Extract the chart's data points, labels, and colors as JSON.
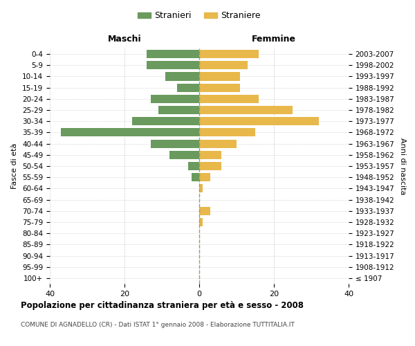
{
  "age_groups": [
    "100+",
    "95-99",
    "90-94",
    "85-89",
    "80-84",
    "75-79",
    "70-74",
    "65-69",
    "60-64",
    "55-59",
    "50-54",
    "45-49",
    "40-44",
    "35-39",
    "30-34",
    "25-29",
    "20-24",
    "15-19",
    "10-14",
    "5-9",
    "0-4"
  ],
  "birth_years": [
    "≤ 1907",
    "1908-1912",
    "1913-1917",
    "1918-1922",
    "1923-1927",
    "1928-1932",
    "1933-1937",
    "1938-1942",
    "1943-1947",
    "1948-1952",
    "1953-1957",
    "1958-1962",
    "1963-1967",
    "1968-1972",
    "1973-1977",
    "1978-1982",
    "1983-1987",
    "1988-1992",
    "1993-1997",
    "1998-2002",
    "2003-2007"
  ],
  "males": [
    0,
    0,
    0,
    0,
    0,
    0,
    0,
    0,
    0,
    2,
    3,
    8,
    13,
    37,
    18,
    11,
    13,
    6,
    9,
    14,
    14
  ],
  "females": [
    0,
    0,
    0,
    0,
    0,
    1,
    3,
    0,
    1,
    3,
    6,
    6,
    10,
    15,
    32,
    25,
    16,
    11,
    11,
    13,
    16
  ],
  "male_color": "#6a9a5e",
  "female_color": "#e8b84b",
  "background_color": "#ffffff",
  "grid_color": "#cccccc",
  "dot_grid_color": "#bbbbbb",
  "center_line_color": "#999977",
  "title": "Popolazione per cittadinanza straniera per età e sesso - 2008",
  "subtitle": "COMUNE DI AGNADELLO (CR) - Dati ISTAT 1° gennaio 2008 - Elaborazione TUTTITALIA.IT",
  "xlabel_left": "Maschi",
  "xlabel_right": "Femmine",
  "ylabel_left": "Fasce di età",
  "ylabel_right": "Anni di nascita",
  "legend_male": "Stranieri",
  "legend_female": "Straniere",
  "xlim": 40
}
